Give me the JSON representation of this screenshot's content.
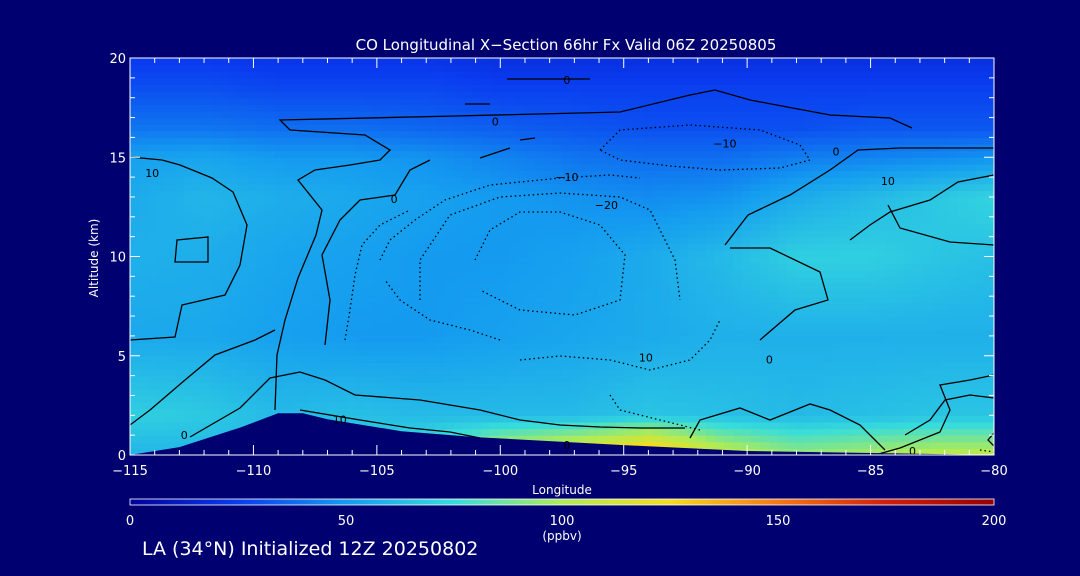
{
  "chart_data": {
    "type": "heatmap",
    "title": "CO Longitudinal X−Section 66hr  Fx Valid 06Z 20250805",
    "xlabel": "Longitude",
    "ylabel": "Altitude (km)",
    "xlim": [
      -115,
      -80
    ],
    "ylim": [
      0,
      20
    ],
    "x_ticks": [
      "−115",
      "−110",
      "−105",
      "−100",
      "−95",
      "−90",
      "−85",
      "−80"
    ],
    "y_ticks": [
      "0",
      "5",
      "10",
      "15",
      "20"
    ],
    "colorbar": {
      "min": 0,
      "max": 200,
      "ticks": [
        "0",
        "50",
        "100",
        "150",
        "200"
      ],
      "units": "(ppbv)",
      "colors": [
        "#00009a",
        "#0a3cf0",
        "#149bf0",
        "#37dcdc",
        "#afec55",
        "#f5dc1e",
        "#f57814",
        "#d21e0a",
        "#960000"
      ]
    },
    "co_ppbv_columns": [
      {
        "lon": -115,
        "z": [
          0,
          2,
          6,
          10,
          13,
          15,
          16.5,
          18.5
        ],
        "co": [
          60,
          70,
          55,
          58,
          56,
          52,
          40,
          30
        ]
      },
      {
        "lon": -112,
        "z": [
          0,
          2,
          6,
          10,
          13,
          15,
          16.5,
          18.5
        ],
        "co": [
          60,
          68,
          55,
          57,
          60,
          54,
          40,
          30
        ]
      },
      {
        "lon": -109,
        "z": [
          0,
          2,
          6,
          10,
          13,
          15,
          16.5,
          18.5
        ],
        "co": [
          60,
          62,
          52,
          54,
          57,
          50,
          38,
          28
        ]
      },
      {
        "lon": -106,
        "z": [
          0,
          2,
          6,
          10,
          13,
          15,
          16.5,
          18.5
        ],
        "co": [
          70,
          64,
          50,
          52,
          55,
          50,
          38,
          28
        ]
      },
      {
        "lon": -103,
        "z": [
          0,
          2,
          6,
          10,
          13,
          15,
          16.5,
          18.5
        ],
        "co": [
          80,
          62,
          50,
          50,
          52,
          48,
          36,
          28
        ]
      },
      {
        "lon": -100,
        "z": [
          0,
          2,
          6,
          10,
          13,
          15,
          16.5,
          18.5
        ],
        "co": [
          110,
          62,
          52,
          50,
          50,
          44,
          34,
          26
        ]
      },
      {
        "lon": -97,
        "z": [
          0,
          2,
          6,
          10,
          13,
          15,
          16.5,
          18.5
        ],
        "co": [
          125,
          62,
          54,
          52,
          48,
          40,
          32,
          26
        ]
      },
      {
        "lon": -94,
        "z": [
          0,
          2,
          6,
          10,
          13,
          15,
          16.5,
          18.5
        ],
        "co": [
          145,
          66,
          56,
          56,
          46,
          38,
          30,
          26
        ]
      },
      {
        "lon": -91,
        "z": [
          0,
          2,
          6,
          10,
          13,
          15,
          16.5,
          18.5
        ],
        "co": [
          110,
          64,
          58,
          62,
          48,
          38,
          30,
          26
        ]
      },
      {
        "lon": -88,
        "z": [
          0,
          2,
          6,
          10,
          13,
          15,
          16.5,
          18.5
        ],
        "co": [
          95,
          62,
          58,
          70,
          56,
          42,
          30,
          26
        ]
      },
      {
        "lon": -85,
        "z": [
          0,
          2,
          6,
          10,
          13,
          15,
          16.5,
          18.5
        ],
        "co": [
          100,
          64,
          58,
          70,
          62,
          44,
          32,
          26
        ]
      },
      {
        "lon": -82,
        "z": [
          0,
          2,
          6,
          10,
          13,
          15,
          16.5,
          18.5
        ],
        "co": [
          105,
          66,
          58,
          66,
          68,
          46,
          32,
          26
        ]
      },
      {
        "lon": -80,
        "z": [
          0,
          2,
          6,
          10,
          13,
          15,
          16.5,
          18.5
        ],
        "co": [
          105,
          66,
          58,
          64,
          72,
          48,
          32,
          26
        ]
      }
    ],
    "contour_labels": [
      {
        "text": "10",
        "lon": -114.1,
        "alt": 14.2
      },
      {
        "text": "0",
        "lon": -104.3,
        "alt": 12.9
      },
      {
        "text": "0",
        "lon": -100.2,
        "alt": 16.8
      },
      {
        "text": "−10",
        "lon": -90.9,
        "alt": 15.7
      },
      {
        "text": "−10",
        "lon": -97.3,
        "alt": 14.0
      },
      {
        "text": "−20",
        "lon": -95.7,
        "alt": 12.6
      },
      {
        "text": "0",
        "lon": -86.4,
        "alt": 15.3
      },
      {
        "text": "10",
        "lon": -84.3,
        "alt": 13.8
      },
      {
        "text": "10",
        "lon": -94.1,
        "alt": 4.9
      },
      {
        "text": "0",
        "lon": -89.1,
        "alt": 4.8
      },
      {
        "text": "10",
        "lon": -106.5,
        "alt": 1.8
      },
      {
        "text": "0",
        "lon": -112.8,
        "alt": 1.0
      },
      {
        "text": "0",
        "lon": -97.3,
        "alt": 0.5
      },
      {
        "text": "0",
        "lon": -83.3,
        "alt": 0.2
      },
      {
        "text": "0",
        "lon": -97.3,
        "alt": 18.9
      }
    ],
    "terrain": [
      [
        -115,
        0.0
      ],
      [
        -113,
        0.4
      ],
      [
        -110.5,
        1.4
      ],
      [
        -109,
        2.1
      ],
      [
        -108,
        2.1
      ],
      [
        -107,
        1.8
      ],
      [
        -104,
        1.2
      ],
      [
        -101,
        0.9
      ],
      [
        -98,
        0.7
      ],
      [
        -95,
        0.5
      ],
      [
        -90,
        0.2
      ],
      [
        -85,
        0.1
      ],
      [
        -80,
        0.0
      ]
    ]
  },
  "footer": {
    "caption": "LA (34°N) Initialized 12Z 20250802"
  }
}
